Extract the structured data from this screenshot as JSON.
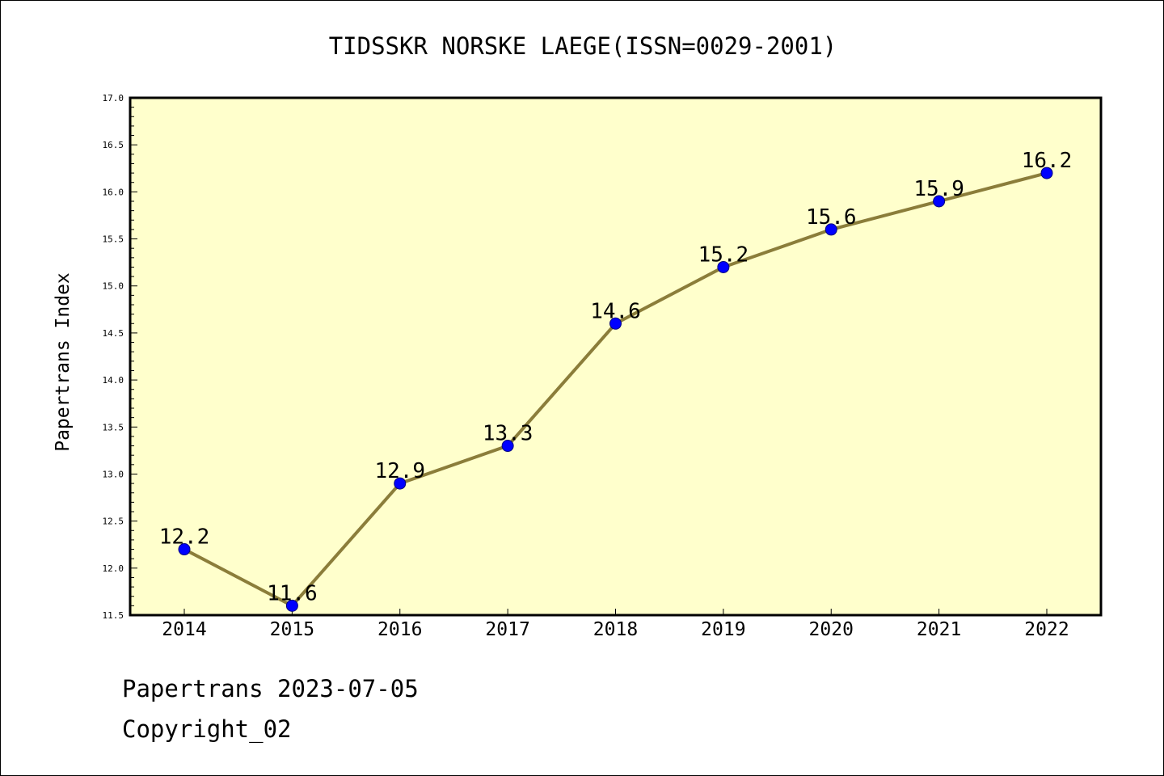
{
  "footer": {
    "date_line": "Papertrans 2023-07-05",
    "copyright_line": "Copyright_02"
  },
  "colors": {
    "plot_background": "#ffffcc",
    "line": "#8b7d3a",
    "marker_fill": "#0000ff",
    "marker_edge": "#000080",
    "axis": "#000000"
  },
  "chart_data": {
    "type": "line",
    "title": "TIDSSKR NORSKE LAEGE(ISSN=0029-2001)",
    "xlabel": "",
    "ylabel": "Papertrans Index",
    "categories": [
      "2014",
      "2015",
      "2016",
      "2017",
      "2018",
      "2019",
      "2020",
      "2021",
      "2022"
    ],
    "series": [
      {
        "values": [
          12.2,
          11.6,
          12.9,
          13.3,
          14.6,
          15.2,
          15.6,
          15.9,
          16.2
        ],
        "data_labels": [
          "12.2",
          "11.6",
          "12.9",
          "13.3",
          "14.6",
          "15.2",
          "15.6",
          "15.9",
          "16.2"
        ]
      }
    ],
    "ylim": [
      11.5,
      17.0
    ],
    "yticks": [
      "11.5",
      "12.0",
      "12.5",
      "13.0",
      "13.5",
      "14.0",
      "14.5",
      "15.0",
      "15.5",
      "16.0",
      "16.5",
      "17.0"
    ],
    "grid": false,
    "legend": "none"
  }
}
